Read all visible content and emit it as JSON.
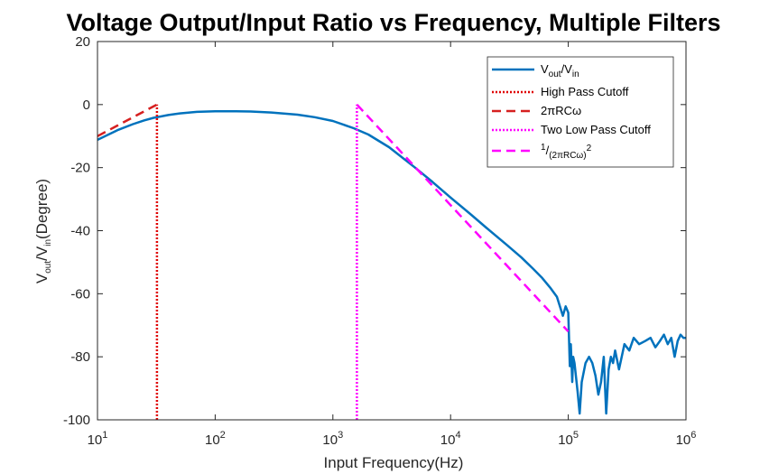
{
  "chart_data": {
    "type": "line",
    "title": "Voltage Output/Input Ratio vs Frequency, Multiple Filters",
    "xlabel": "Input Frequency(Hz)",
    "ylabel": {
      "main": "V",
      "sub1": "out",
      "mid": "/V",
      "sub2": "in",
      "tail": "(Degree)"
    },
    "xscale": "log",
    "xlim": [
      10,
      1000000
    ],
    "ylim": [
      -100,
      20
    ],
    "grid": false,
    "legend_position": "top-right",
    "x_ticks": [
      {
        "base": "10",
        "exp": "1"
      },
      {
        "base": "10",
        "exp": "2"
      },
      {
        "base": "10",
        "exp": "3"
      },
      {
        "base": "10",
        "exp": "4"
      },
      {
        "base": "10",
        "exp": "5"
      },
      {
        "base": "10",
        "exp": "6"
      }
    ],
    "y_ticks": [
      "20",
      "0",
      "-20",
      "-40",
      "-60",
      "-80",
      "-100"
    ],
    "legend": [
      {
        "style": "solid",
        "color": "#0072BD",
        "label_parts": [
          "V",
          "out",
          "/V",
          "in"
        ]
      },
      {
        "style": "dotted",
        "color": "#E00000",
        "label": "High Pass Cutoff"
      },
      {
        "style": "dashed",
        "color": "#D62020",
        "label": "2πRCω"
      },
      {
        "style": "dotted",
        "color": "#FF00FF",
        "label": "Two Low Pass Cutoff"
      },
      {
        "style": "dashed",
        "color": "#FF00FF",
        "label_parts": [
          "1",
          "/",
          "(2πRCω)",
          "2"
        ]
      }
    ],
    "series": [
      {
        "name": "Vout/Vin",
        "color": "#0072BD",
        "x": [
          10,
          15,
          20,
          25,
          30,
          40,
          50,
          70,
          100,
          150,
          200,
          300,
          500,
          700,
          1000,
          1500,
          2000,
          3000,
          5000,
          7000,
          10000,
          15000,
          20000,
          30000,
          40000,
          50000,
          60000,
          70000,
          80000,
          90000,
          95000,
          100000,
          103000,
          105000,
          108000,
          110000,
          113000,
          116000,
          120000,
          125000,
          130000,
          140000,
          150000,
          160000,
          170000,
          180000,
          190000,
          200000,
          210000,
          220000,
          230000,
          240000,
          250000,
          270000,
          300000,
          330000,
          360000,
          400000,
          450000,
          500000,
          550000,
          600000,
          650000,
          700000,
          750000,
          800000,
          850000,
          900000,
          950000,
          1000000
        ],
        "y": [
          -11.2,
          -8,
          -6.2,
          -5,
          -4.2,
          -3.3,
          -2.8,
          -2.3,
          -2.1,
          -2.1,
          -2.2,
          -2.5,
          -3.2,
          -4,
          -5.2,
          -7.5,
          -9.5,
          -13.5,
          -20,
          -24.5,
          -29.5,
          -35,
          -39,
          -44.5,
          -48.5,
          -52,
          -55,
          -58,
          -61,
          -67,
          -64,
          -66,
          -83,
          -76,
          -88,
          -80,
          -82,
          -86,
          -91,
          -98,
          -88,
          -82,
          -80,
          -82,
          -86,
          -92,
          -88,
          -80,
          -98,
          -84,
          -80,
          -82,
          -78,
          -84,
          -76,
          -78,
          -74,
          -76,
          -75,
          -74,
          -77,
          -75,
          -73,
          -76,
          -74,
          -80,
          -75,
          -73,
          -74,
          -74
        ]
      },
      {
        "name": "High Pass Cutoff",
        "color": "#E00000",
        "x": [
          32,
          32
        ],
        "y": [
          -100,
          0
        ]
      },
      {
        "name": "2πRCω",
        "color": "#D62020",
        "x": [
          10,
          32
        ],
        "y": [
          -10,
          0
        ]
      },
      {
        "name": "Two Low Pass Cutoff",
        "color": "#FF00FF",
        "x": [
          1600,
          1600
        ],
        "y": [
          -100,
          0
        ]
      },
      {
        "name": "1/(2πRCω)^2",
        "color": "#FF00FF",
        "x": [
          1600,
          100000
        ],
        "y": [
          0,
          -72
        ]
      }
    ]
  }
}
